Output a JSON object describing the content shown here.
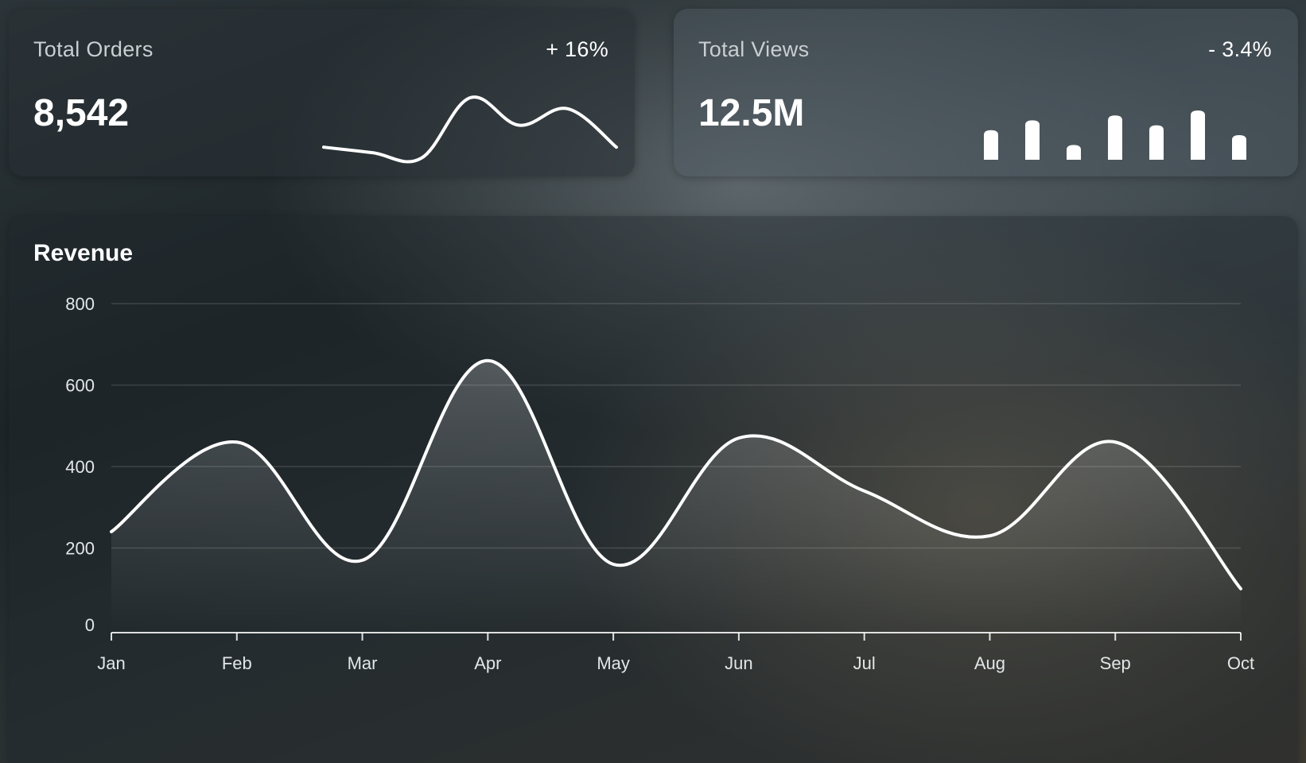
{
  "kpis": {
    "orders": {
      "label": "Total Orders",
      "value": "8,542",
      "change": "+ 16%",
      "spark_values": [
        5,
        4,
        3,
        14,
        9,
        12,
        5
      ]
    },
    "views": {
      "label": "Total Views",
      "value": "12.5M",
      "change": "- 3.4%",
      "bar_values": [
        6,
        8,
        3,
        9,
        7,
        10,
        5
      ]
    }
  },
  "revenue": {
    "title": "Revenue"
  },
  "chart_data": {
    "type": "area",
    "title": "Revenue",
    "categories": [
      "Jan",
      "Feb",
      "Mar",
      "Apr",
      "May",
      "Jun",
      "Jul",
      "Aug",
      "Sep",
      "Oct"
    ],
    "values": [
      240,
      460,
      170,
      660,
      160,
      470,
      340,
      230,
      460,
      100
    ],
    "ylim": [
      0,
      800
    ],
    "yticks": [
      0,
      200,
      400,
      600,
      800
    ],
    "xlabel": "",
    "ylabel": "",
    "grid": true,
    "line_color": "#ffffff"
  }
}
